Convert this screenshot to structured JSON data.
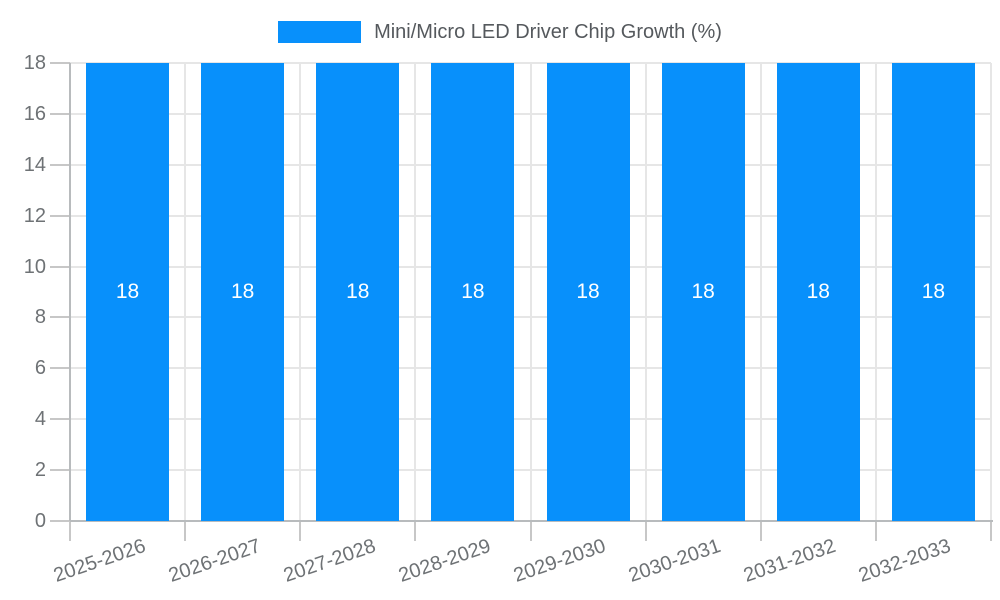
{
  "chart_data": {
    "type": "bar",
    "title": "",
    "legend": "Mini/Micro LED Driver Chip Growth (%)",
    "legend_position": "top-center",
    "categories": [
      "2025-2026",
      "2026-2027",
      "2027-2028",
      "2028-2029",
      "2029-2030",
      "2030-2031",
      "2031-2032",
      "2032-2033"
    ],
    "series": [
      {
        "name": "Mini/Micro LED Driver Chip Growth (%)",
        "values": [
          18,
          18,
          18,
          18,
          18,
          18,
          18,
          18
        ]
      }
    ],
    "data_labels": [
      "18",
      "18",
      "18",
      "18",
      "18",
      "18",
      "18",
      "18"
    ],
    "xlabel": "",
    "ylabel": "",
    "ylim": [
      0,
      18
    ],
    "yticks": [
      0,
      2,
      4,
      6,
      8,
      10,
      12,
      14,
      16,
      18
    ],
    "grid": true,
    "colors": {
      "bar": "#0890FB",
      "bar_value_label": "#FFFFFF",
      "gridline": "#E6E6E6",
      "axis_border": "#B8BBBD",
      "tick_mark": "#C7C7C7",
      "tick_label_text": "#6E7275",
      "legend_text": "#55595D",
      "background": "#FFFFFF"
    }
  }
}
